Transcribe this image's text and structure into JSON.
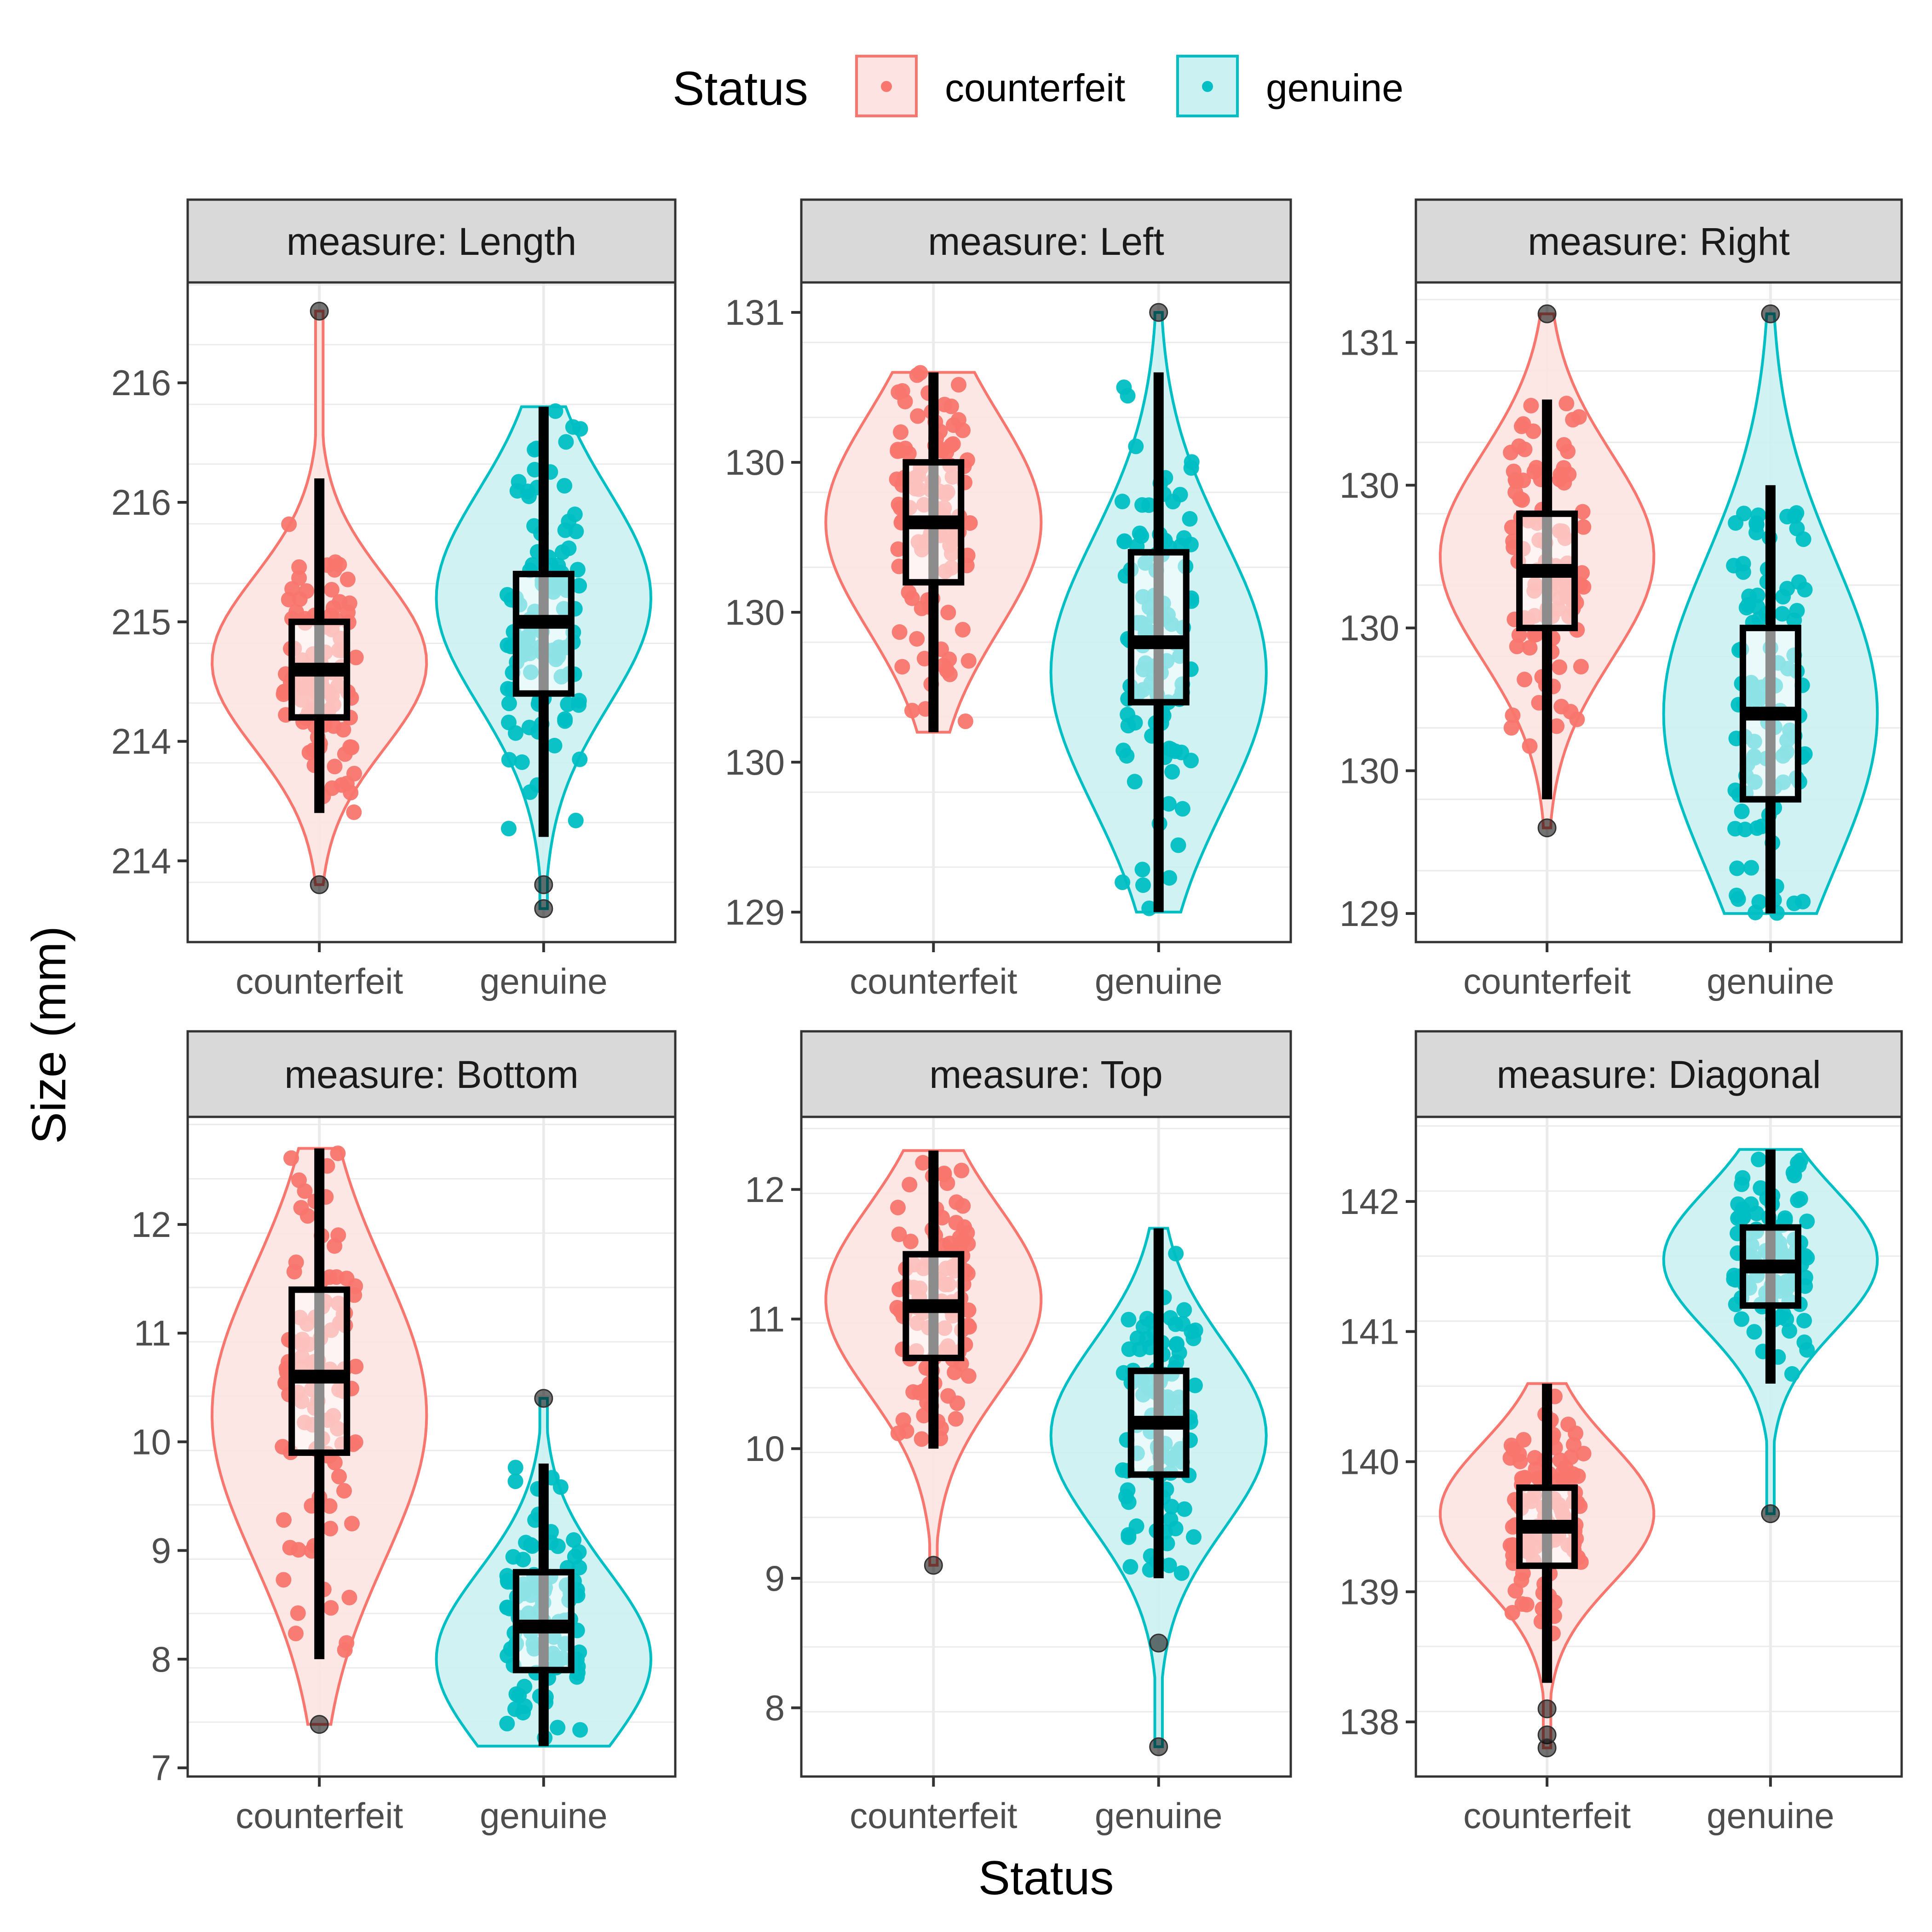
{
  "chart_data": {
    "type": "violin",
    "title": "",
    "xlabel": "Status",
    "ylabel": "Size (mm)",
    "legend": {
      "title": "Status",
      "position": "top",
      "entries": [
        {
          "name": "counterfeit",
          "color": "#F8766D",
          "fill": "#FDE4E2"
        },
        {
          "name": "genuine",
          "color": "#00BFC4",
          "fill": "#CCF1F2"
        }
      ]
    },
    "categories": [
      "counterfeit",
      "genuine"
    ],
    "strip_prefix": "measure: ",
    "grid": true,
    "panels": [
      {
        "measure": "Length",
        "ylim": [
          213.66,
          216.42
        ],
        "yticks": [
          214.0,
          214.5,
          215.0,
          215.5,
          216.0
        ],
        "ytick_labels": [
          "214",
          "214",
          "215",
          "216",
          "216"
        ],
        "series": [
          {
            "name": "counterfeit",
            "min": 214.2,
            "q1": 214.6,
            "median": 214.8,
            "q3": 215.0,
            "max": 215.6,
            "outliers": [
              213.9,
              216.3
            ],
            "violin_peak": 214.83,
            "violin_range": [
              213.9,
              216.3
            ]
          },
          {
            "name": "genuine",
            "min": 214.1,
            "q1": 214.7,
            "median": 215.0,
            "q3": 215.2,
            "max": 215.9,
            "outliers": [
              213.9,
              213.8
            ],
            "violin_peak": 215.1,
            "violin_range": [
              213.8,
              215.9
            ]
          }
        ]
      },
      {
        "measure": "Left",
        "ylim": [
          128.9,
          131.1
        ],
        "yticks": [
          129.0,
          129.5,
          130.0,
          130.5,
          131.0
        ],
        "ytick_labels": [
          "129",
          "130",
          "130",
          "130",
          "131"
        ],
        "series": [
          {
            "name": "counterfeit",
            "min": 129.6,
            "q1": 130.1,
            "median": 130.3,
            "q3": 130.5,
            "max": 130.8,
            "outliers": [],
            "violin_peak": 130.3,
            "violin_range": [
              129.6,
              130.8
            ]
          },
          {
            "name": "genuine",
            "min": 129.0,
            "q1": 129.7,
            "median": 129.9,
            "q3": 130.2,
            "max": 130.8,
            "outliers": [
              131.0
            ],
            "violin_peak": 129.8,
            "violin_range": [
              129.0,
              131.0
            ]
          }
        ]
      },
      {
        "measure": "Right",
        "ylim": [
          128.9,
          131.21
        ],
        "yticks": [
          129.0,
          129.5,
          130.0,
          130.5,
          131.0
        ],
        "ytick_labels": [
          "129",
          "130",
          "130",
          "130",
          "131"
        ],
        "series": [
          {
            "name": "counterfeit",
            "min": 129.4,
            "q1": 130.0,
            "median": 130.2,
            "q3": 130.4,
            "max": 130.8,
            "outliers": [
              129.3,
              131.1
            ],
            "violin_peak": 130.25,
            "violin_range": [
              129.3,
              131.1
            ]
          },
          {
            "name": "genuine",
            "min": 129.0,
            "q1": 129.4,
            "median": 129.7,
            "q3": 130.0,
            "max": 130.5,
            "outliers": [
              131.1
            ],
            "violin_peak": 129.7,
            "violin_range": [
              129.0,
              131.1
            ]
          }
        ]
      },
      {
        "measure": "Bottom",
        "ylim": [
          6.92,
          12.99
        ],
        "yticks": [
          7,
          8,
          9,
          10,
          11,
          12
        ],
        "ytick_labels": [
          "7",
          "8",
          "9",
          "10",
          "11",
          "12"
        ],
        "series": [
          {
            "name": "counterfeit",
            "min": 8.0,
            "q1": 9.9,
            "median": 10.6,
            "q3": 11.4,
            "max": 12.7,
            "outliers": [
              7.4
            ],
            "violin_peak": 10.25,
            "violin_range": [
              7.4,
              12.7
            ]
          },
          {
            "name": "genuine",
            "min": 7.2,
            "q1": 7.9,
            "median": 8.3,
            "q3": 8.8,
            "max": 9.8,
            "outliers": [
              10.4
            ],
            "violin_peak": 8.0,
            "violin_range": [
              7.2,
              10.4
            ]
          }
        ]
      },
      {
        "measure": "Top",
        "ylim": [
          7.47,
          12.56
        ],
        "yticks": [
          8,
          9,
          10,
          11,
          12
        ],
        "ytick_labels": [
          "8",
          "9",
          "10",
          "11",
          "12"
        ],
        "series": [
          {
            "name": "counterfeit",
            "min": 10.0,
            "q1": 10.7,
            "median": 11.1,
            "q3": 11.5,
            "max": 12.3,
            "outliers": [
              9.1
            ],
            "violin_peak": 11.15,
            "violin_range": [
              9.1,
              12.3
            ]
          },
          {
            "name": "genuine",
            "min": 9.0,
            "q1": 9.8,
            "median": 10.2,
            "q3": 10.6,
            "max": 11.7,
            "outliers": [
              8.5,
              7.7
            ],
            "violin_peak": 10.1,
            "violin_range": [
              7.7,
              11.7
            ]
          }
        ]
      },
      {
        "measure": "Diagonal",
        "ylim": [
          137.58,
          142.65
        ],
        "yticks": [
          138,
          139,
          140,
          141,
          142
        ],
        "ytick_labels": [
          "138",
          "139",
          "140",
          "141",
          "142"
        ],
        "series": [
          {
            "name": "counterfeit",
            "min": 138.3,
            "q1": 139.2,
            "median": 139.5,
            "q3": 139.8,
            "max": 140.6,
            "outliers": [
              138.1,
              137.9,
              137.8
            ],
            "violin_peak": 139.6,
            "violin_range": [
              137.8,
              140.6
            ]
          },
          {
            "name": "genuine",
            "min": 140.6,
            "q1": 141.2,
            "median": 141.5,
            "q3": 141.8,
            "max": 142.4,
            "outliers": [
              139.6
            ],
            "violin_peak": 141.55,
            "violin_range": [
              139.6,
              142.4
            ]
          }
        ]
      }
    ]
  }
}
